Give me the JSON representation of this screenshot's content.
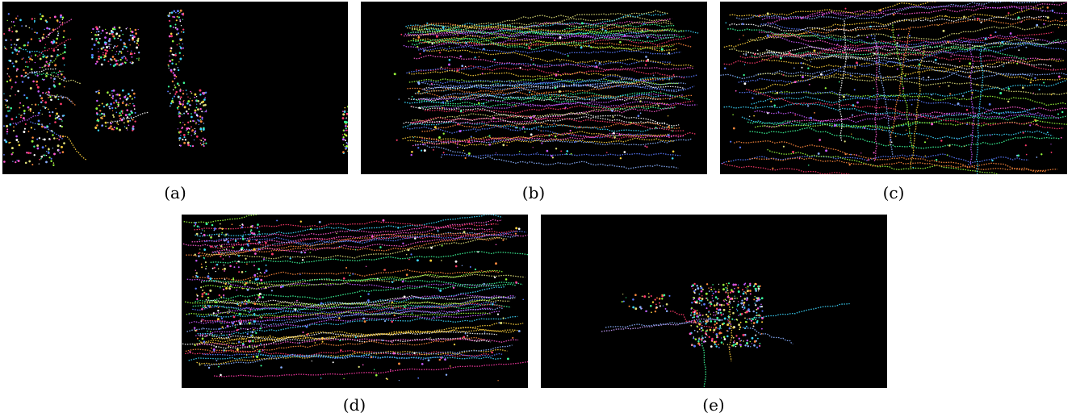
{
  "figure": {
    "panels": [
      {
        "id": "a",
        "caption": "(a)"
      },
      {
        "id": "b",
        "caption": "(b)"
      },
      {
        "id": "c",
        "caption": "(c)"
      },
      {
        "id": "d",
        "caption": "(d)"
      },
      {
        "id": "e",
        "caption": "(e)"
      }
    ]
  },
  "palette": [
    "#ff3b6b",
    "#3dff9b",
    "#5a7bff",
    "#ffd23d",
    "#c85aff",
    "#3dd8ff",
    "#ff8a3d",
    "#9bff3d",
    "#ff5ad0",
    "#8ab0ff",
    "#ffffff",
    "#e0e07a"
  ]
}
